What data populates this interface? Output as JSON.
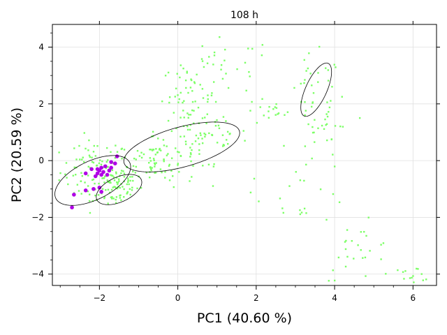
{
  "chart_data": {
    "type": "scatter",
    "title": "108 h",
    "xlabel": "PC1 (40.60 %)",
    "ylabel": "PC2 (20.59 %)",
    "xlim": [
      -3.2,
      6.6
    ],
    "ylim": [
      -4.4,
      4.8
    ],
    "xticks": [
      -2,
      0,
      2,
      4,
      6
    ],
    "yticks": [
      -4,
      -2,
      0,
      2,
      4
    ],
    "grid": true,
    "colors": {
      "green": "#7cff66",
      "purple": "#b000e6",
      "ellipse": "#000000"
    },
    "clusters": [
      {
        "cx": -2.1,
        "cy": -0.4,
        "sx": 0.45,
        "sy": 0.55,
        "n": 90
      },
      {
        "cx": -1.6,
        "cy": -0.9,
        "sx": 0.3,
        "sy": 0.35,
        "n": 70
      },
      {
        "cx": -0.6,
        "cy": 0.0,
        "sx": 0.55,
        "sy": 0.45,
        "n": 90
      },
      {
        "cx": 0.3,
        "cy": 2.3,
        "sx": 0.35,
        "sy": 0.55,
        "n": 50
      },
      {
        "cx": 0.6,
        "cy": 0.9,
        "sx": 0.6,
        "sy": 0.6,
        "n": 70
      },
      {
        "cx": 1.2,
        "cy": 3.3,
        "sx": 0.6,
        "sy": 0.5,
        "n": 25
      },
      {
        "cx": 2.3,
        "cy": 1.7,
        "sx": 0.3,
        "sy": 0.25,
        "n": 15
      },
      {
        "cx": 3.5,
        "cy": 2.3,
        "sx": 0.35,
        "sy": 0.7,
        "n": 35
      },
      {
        "cx": 3.8,
        "cy": 1.1,
        "sx": 0.35,
        "sy": 0.6,
        "n": 25
      },
      {
        "cx": 3.2,
        "cy": -1.0,
        "sx": 0.6,
        "sy": 0.6,
        "n": 20
      },
      {
        "cx": 4.6,
        "cy": -3.2,
        "sx": 0.45,
        "sy": 0.5,
        "n": 25
      },
      {
        "cx": 6.0,
        "cy": -4.0,
        "sx": 0.3,
        "sy": 0.12,
        "n": 15
      }
    ],
    "purple_points": [
      [
        -2.7,
        -1.65
      ],
      [
        -2.65,
        -1.2
      ],
      [
        -2.35,
        -1.05
      ],
      [
        -2.15,
        -1.0
      ],
      [
        -2.35,
        -0.45
      ],
      [
        -2.2,
        -0.3
      ],
      [
        -2.05,
        -0.3
      ],
      [
        -1.95,
        -0.25
      ],
      [
        -2.0,
        -0.35
      ],
      [
        -1.9,
        -0.4
      ],
      [
        -1.95,
        -0.5
      ],
      [
        -2.05,
        -0.45
      ],
      [
        -1.85,
        -0.2
      ],
      [
        -1.8,
        -0.5
      ],
      [
        -1.7,
        -0.05
      ],
      [
        -1.7,
        -0.25
      ],
      [
        -1.55,
        0.15
      ],
      [
        -2.0,
        -0.95
      ],
      [
        -1.95,
        -1.1
      ],
      [
        -1.6,
        -0.1
      ],
      [
        -1.75,
        -0.35
      ],
      [
        -2.1,
        -0.55
      ]
    ],
    "ellipses": [
      {
        "cx": -2.17,
        "cy": -0.7,
        "rx": 1.15,
        "ry": 0.62,
        "angle_deg": 40
      },
      {
        "cx": -1.5,
        "cy": -1.02,
        "rx": 0.68,
        "ry": 0.4,
        "angle_deg": 40
      },
      {
        "cx": 0.1,
        "cy": 0.48,
        "rx": 1.58,
        "ry": 0.68,
        "angle_deg": 23
      },
      {
        "cx": 3.53,
        "cy": 2.5,
        "rx": 0.98,
        "ry": 0.28,
        "angle_deg": 73
      }
    ]
  }
}
